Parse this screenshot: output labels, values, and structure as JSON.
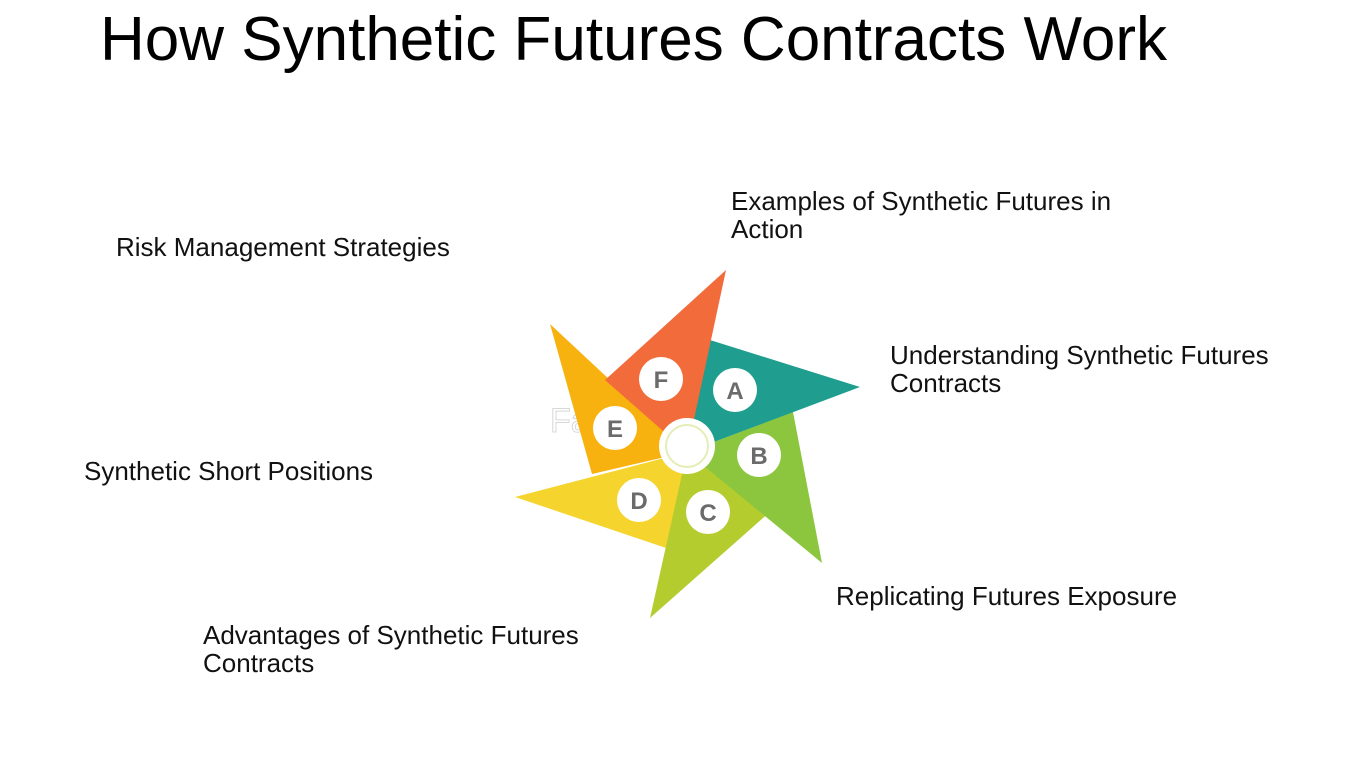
{
  "title": "How Synthetic Futures Contracts Work",
  "watermark": "FasterCapital",
  "items": [
    {
      "letter": "A",
      "label": "Understanding Synthetic Futures Contracts",
      "color": "#1f9e8f"
    },
    {
      "letter": "B",
      "label": "Replicating Futures Exposure",
      "color": "#8cc63f"
    },
    {
      "letter": "C",
      "label": "Advantages of Synthetic Futures Contracts",
      "color": "#b5cc2f"
    },
    {
      "letter": "D",
      "label": "Synthetic Short Positions",
      "color": "#f6d42e"
    },
    {
      "letter": "E",
      "label": "Risk Management Strategies",
      "color": "#f7b20f"
    },
    {
      "letter": "F",
      "label": "Examples of Synthetic Futures in Action",
      "color": "#f26b3a"
    }
  ]
}
